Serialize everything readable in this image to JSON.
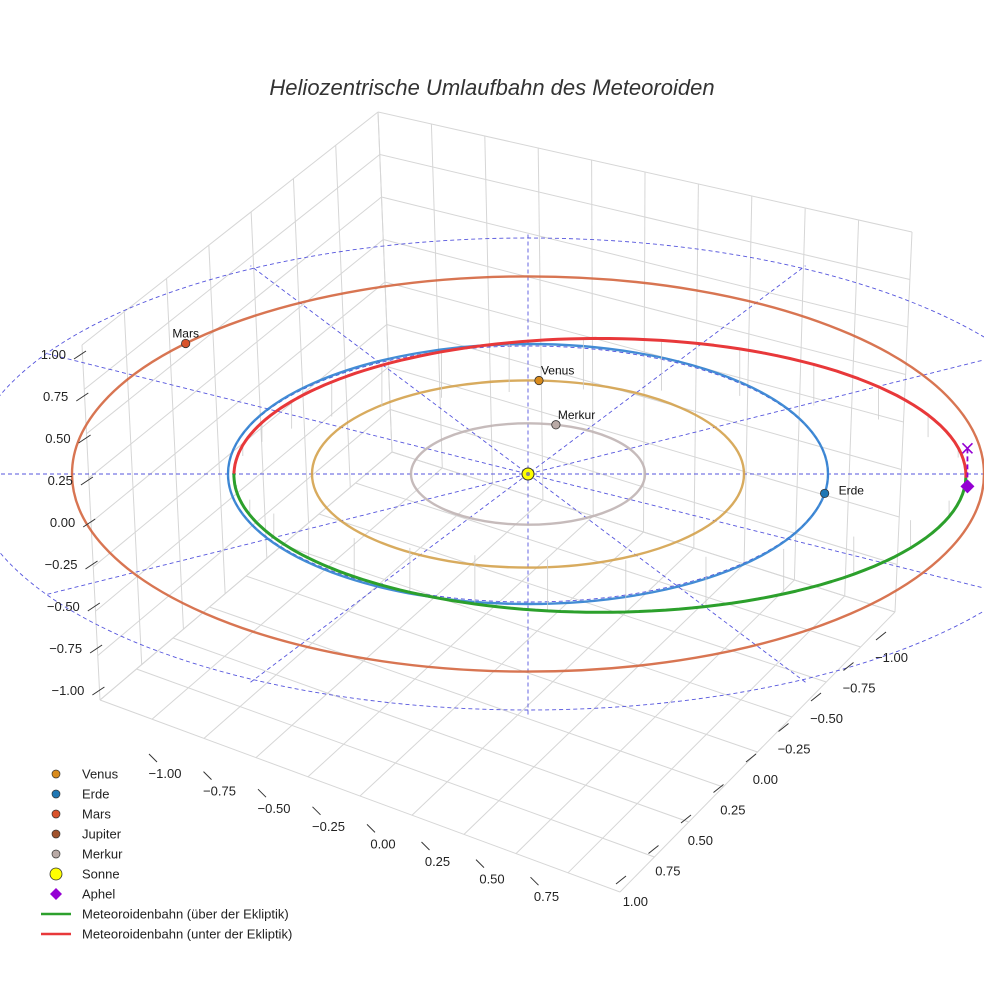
{
  "chart_data": {
    "type": "scatter",
    "title": "Heliozentrische Umlaufbahn des Meteoroiden",
    "view": "3d",
    "axes": {
      "z_ticks": [
        "1.00",
        "0.75",
        "0.50",
        "0.25",
        "0.00",
        "−0.25",
        "−0.50",
        "−0.75",
        "−1.00"
      ],
      "x_ticks": [
        "−1.00",
        "−0.75",
        "−0.50",
        "−0.25",
        "0.00",
        "0.25",
        "0.50",
        "0.75"
      ],
      "y_ticks": [
        "−1.00",
        "−0.75",
        "−0.50",
        "−0.25",
        "0.00",
        "0.25",
        "0.50",
        "0.75",
        "1.00"
      ],
      "grid": true
    },
    "orbits": [
      {
        "name": "Merkur",
        "radius": 0.39,
        "color": "#c0b4b4"
      },
      {
        "name": "Venus",
        "radius": 0.72,
        "color": "#d4a24c"
      },
      {
        "name": "Erde",
        "radius": 1.0,
        "color": "#2f7fd0"
      },
      {
        "name": "Mars",
        "radius": 1.52,
        "color": "#d4663f"
      }
    ],
    "planets": [
      {
        "name": "Venus",
        "label": "Venus",
        "color": "#d98b1c"
      },
      {
        "name": "Erde",
        "label": "Erde",
        "color": "#1f77b4"
      },
      {
        "name": "Mars",
        "label": "Mars",
        "color": "#d9532b"
      },
      {
        "name": "Merkur",
        "label": "Merkur",
        "color": "#b9aaa6"
      }
    ],
    "meteoroid": {
      "above_color": "#2ca02c",
      "below_color": "#e8383a",
      "perihelion_au": 0.98,
      "aphelion_au": 1.46
    },
    "legend": {
      "position": "bottom-left",
      "entries": [
        {
          "label": "Venus",
          "symbol": "circle",
          "color": "#d98b1c"
        },
        {
          "label": "Erde",
          "symbol": "circle",
          "color": "#1f77b4"
        },
        {
          "label": "Mars",
          "symbol": "circle",
          "color": "#d9532b"
        },
        {
          "label": "Jupiter",
          "symbol": "circle",
          "color": "#a0522d"
        },
        {
          "label": "Merkur",
          "symbol": "circle",
          "color": "#b9aaa6"
        },
        {
          "label": "Sonne",
          "symbol": "circle-large",
          "color": "#ffff00"
        },
        {
          "label": "Aphel",
          "symbol": "diamond",
          "color": "#9400d3"
        },
        {
          "label": "Meteoroidenbahn (über der Ekliptik)",
          "symbol": "line",
          "color": "#2ca02c"
        },
        {
          "label": "Meteoroidenbahn (unter der Ekliptik)",
          "symbol": "line",
          "color": "#e8383a"
        }
      ]
    }
  }
}
